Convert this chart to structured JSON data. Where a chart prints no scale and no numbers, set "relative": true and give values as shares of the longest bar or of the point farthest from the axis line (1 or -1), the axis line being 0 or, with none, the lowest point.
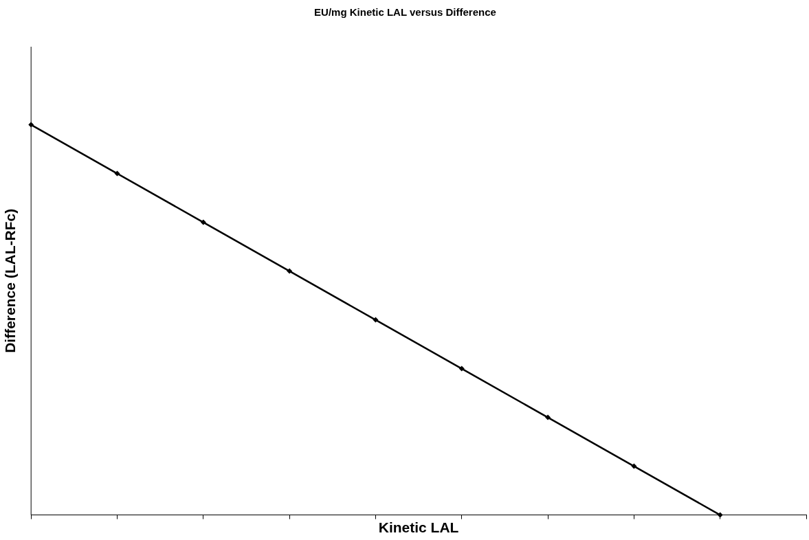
{
  "chart_data": {
    "type": "line",
    "title": "EU/mg Kinetic LAL versus Difference",
    "xlabel": "Kinetic LAL",
    "ylabel": "Difference (LAL-RFc)",
    "relative": true,
    "categories": [
      null,
      null,
      null,
      null,
      null,
      null,
      null,
      null,
      null,
      null
    ],
    "series": [
      {
        "color": "#000000",
        "values": [
          1,
          0.875,
          0.75,
          0.625,
          0.5,
          0.375,
          0.25,
          0.125,
          0,
          null
        ]
      }
    ],
    "marker": "diamond",
    "line_style": "solid",
    "grid": false,
    "legend": false
  }
}
